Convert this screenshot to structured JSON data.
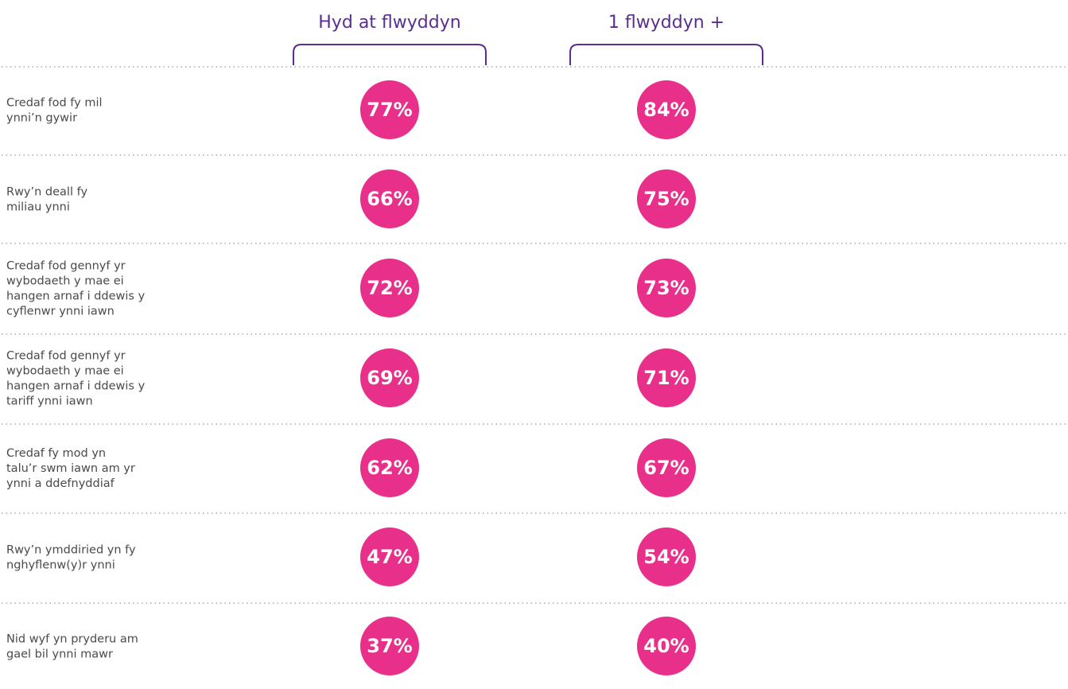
{
  "table": {
    "columns": [
      "Hyd at flwyddyn",
      "1 flwyddyn +"
    ],
    "rows": [
      {
        "label": [
          "Credaf fod fy mil",
          "ynni’n gywir"
        ],
        "cells": [
          "77%",
          "84%"
        ]
      },
      {
        "label": [
          "Rwy’n deall fy",
          "miliau ynni"
        ],
        "cells": [
          "66%",
          "75%"
        ]
      },
      {
        "label": [
          "Credaf fod gennyf yr",
          "wybodaeth y mae ei",
          "hangen arnaf i ddewis y",
          "cyflenwr ynni iawn"
        ],
        "cells": [
          "72%",
          "73%"
        ]
      },
      {
        "label": [
          "Credaf fod gennyf yr",
          "wybodaeth y mae ei",
          "hangen arnaf i ddewis y",
          "tariff ynni iawn"
        ],
        "cells": [
          "69%",
          "71%"
        ]
      },
      {
        "label": [
          "Credaf fy mod yn",
          "talu’r swm iawn am yr",
          "ynni a ddefnyddiaf"
        ],
        "cells": [
          "62%",
          "67%"
        ]
      },
      {
        "label": [
          "Rwy’n ymddiried yn fy",
          "nghyflenw(y)r ynni"
        ],
        "cells": [
          "47%",
          "54%"
        ]
      },
      {
        "label": [
          "Nid wyf yn pryderu am",
          "gael bil ynni mawr"
        ],
        "cells": [
          "37%",
          "40%"
        ]
      }
    ]
  }
}
